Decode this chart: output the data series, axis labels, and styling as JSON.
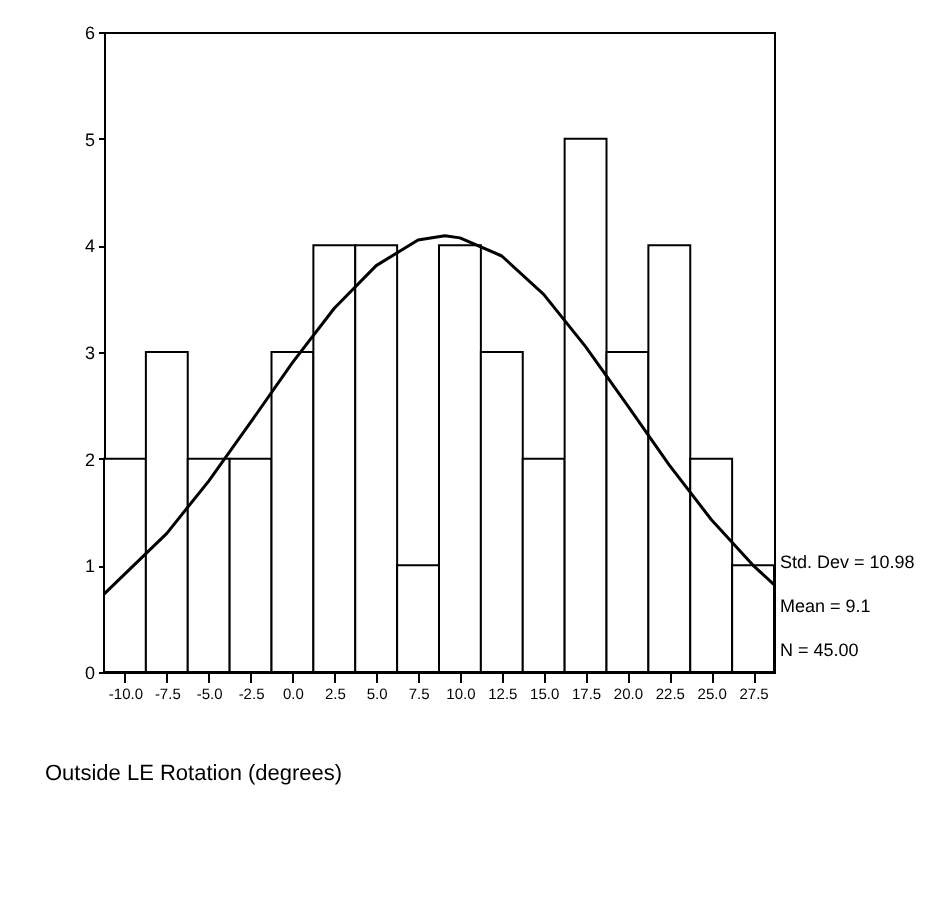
{
  "chart_data": {
    "type": "histogram",
    "xlabel": "Outside LE Rotation (degrees)",
    "bins": [
      -11.25,
      -8.75,
      -6.25,
      -3.75,
      -1.25,
      1.25,
      3.75,
      6.25,
      8.75,
      11.25,
      13.75,
      16.25,
      18.75,
      21.25,
      23.75,
      26.25,
      28.75
    ],
    "values": [
      2,
      3,
      2,
      2,
      3,
      4,
      4,
      1,
      4,
      3,
      2,
      5,
      3,
      4,
      2,
      1
    ],
    "color": "#ffffff",
    "series": [
      {
        "type": "line",
        "color": "#000000",
        "x": [
          -11.25,
          -7.5,
          -5,
          -2.5,
          0,
          2.5,
          5,
          7.5,
          9.1,
          10,
          12.5,
          15,
          17.5,
          20,
          22.5,
          25,
          27.5,
          28.75
        ],
        "values": [
          0.73,
          1.3,
          1.79,
          2.34,
          2.9,
          3.41,
          3.81,
          4.05,
          4.09,
          4.07,
          3.9,
          3.54,
          3.05,
          2.5,
          1.94,
          1.43,
          1.0,
          0.82
        ]
      }
    ],
    "xlim": [
      -11.25,
      28.75
    ],
    "xticks": [
      {
        "value": -10,
        "label": "-10.0"
      },
      -7.5,
      {
        "value": -5,
        "label": "-5.0"
      },
      -2.5,
      {
        "value": 0,
        "label": "0.0"
      },
      2.5,
      {
        "value": 5,
        "label": "5.0"
      },
      7.5,
      {
        "value": 10,
        "label": "10.0"
      },
      12.5,
      {
        "value": 15,
        "label": "15.0"
      },
      17.5,
      {
        "value": 20,
        "label": "20.0"
      },
      22.5,
      {
        "value": 25,
        "label": "25.0"
      },
      27.5
    ],
    "ylim": [
      0,
      6
    ],
    "yticks": [
      {
        "value": 0,
        "label": "0"
      },
      {
        "value": 1,
        "label": "1"
      },
      {
        "value": 2,
        "label": "2"
      },
      {
        "value": 3,
        "label": "3"
      },
      {
        "value": 4,
        "label": "4"
      },
      {
        "value": 5,
        "label": "5"
      },
      {
        "value": 6,
        "label": "6"
      }
    ],
    "annotations": [
      "Std. Dev = 10.98",
      "Mean = 9.1",
      "N = 45.00"
    ]
  }
}
